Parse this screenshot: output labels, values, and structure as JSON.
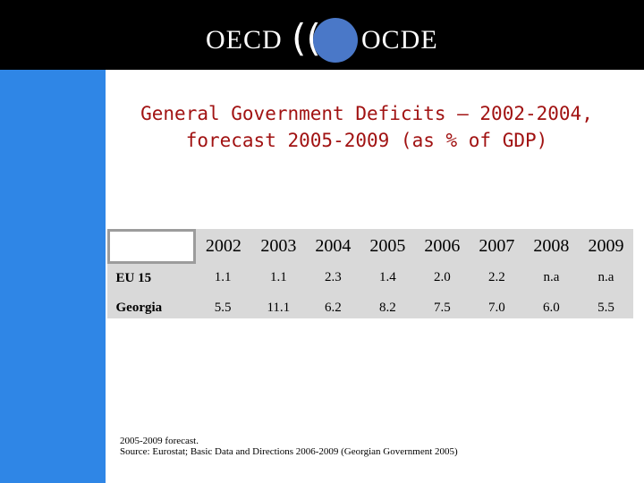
{
  "header": {
    "logo_left": "OECD",
    "logo_right": "OCDE",
    "logo_mark": "((",
    "colors": {
      "background": "#000000",
      "globe": "#4a78c8"
    }
  },
  "sidebar": {
    "color": "#2f86e6"
  },
  "slide": {
    "title_line1": "General Government Deficits – 2002-2004,",
    "title_line2": "forecast 2005-2009 (as % of GDP)",
    "title_color": "#a11212"
  },
  "table": {
    "years": [
      "2002",
      "2003",
      "2004",
      "2005",
      "2006",
      "2007",
      "2008",
      "2009"
    ],
    "rows": [
      {
        "label": "EU 15",
        "values": [
          "1.1",
          "1.1",
          "2.3",
          "1.4",
          "2.0",
          "2.2",
          "n.a",
          "n.a"
        ]
      },
      {
        "label": "Georgia",
        "values": [
          "5.5",
          "11.1",
          "6.2",
          "8.2",
          "7.5",
          "7.0",
          "6.0",
          "5.5"
        ]
      }
    ]
  },
  "note": {
    "line1": "2005-2009 forecast.",
    "line2": "Source: Eurostat; Basic Data and Directions 2006-2009 (Georgian Government 2005)"
  }
}
